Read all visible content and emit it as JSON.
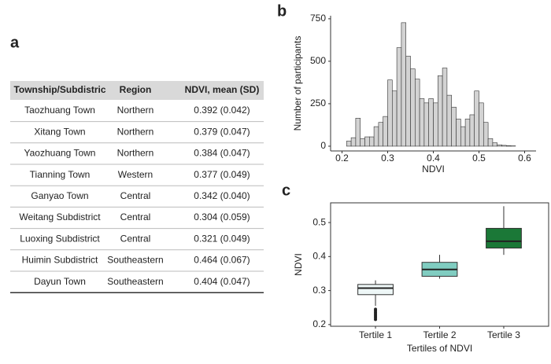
{
  "panel_labels": [
    "a",
    "b",
    "c"
  ],
  "table": {
    "header": [
      "Township/Subdistric",
      "Region",
      "NDVI, mean (SD)"
    ],
    "rows": [
      [
        "Taozhuang Town",
        "Northern",
        "0.392 (0.042)"
      ],
      [
        "Xitang Town",
        "Northern",
        "0.379 (0.047)"
      ],
      [
        "Yaozhuang Town",
        "Northern",
        "0.384 (0.047)"
      ],
      [
        "Tianning Town",
        "Western",
        "0.377 (0.049)"
      ],
      [
        "Ganyao Town",
        "Central",
        "0.342 (0.040)"
      ],
      [
        "Weitang Subdistrict",
        "Central",
        "0.304 (0.059)"
      ],
      [
        "Luoxing Subdistrict",
        "Central",
        "0.321 (0.049)"
      ],
      [
        "Huimin Subdistrict",
        "Southeastern",
        "0.464 (0.067)"
      ],
      [
        "Dayun Town",
        "Southeastern",
        "0.404 (0.047)"
      ]
    ]
  },
  "chart_data": [
    {
      "type": "histogram",
      "x_label": "NDVI",
      "y_label": "Number of participants",
      "color": "#d3d3d3",
      "bins": [
        0.21,
        0.22,
        0.23,
        0.24,
        0.25,
        0.26,
        0.27,
        0.28,
        0.29,
        0.3,
        0.31,
        0.32,
        0.33,
        0.34,
        0.35,
        0.36,
        0.37,
        0.38,
        0.39,
        0.4,
        0.41,
        0.42,
        0.43,
        0.44,
        0.45,
        0.46,
        0.47,
        0.48,
        0.49,
        0.5,
        0.51,
        0.52,
        0.53,
        0.54,
        0.55,
        0.56,
        0.57,
        0.58
      ],
      "values": [
        30,
        50,
        165,
        45,
        55,
        55,
        115,
        140,
        175,
        390,
        325,
        580,
        727,
        530,
        455,
        395,
        280,
        255,
        280,
        255,
        415,
        460,
        300,
        230,
        160,
        115,
        160,
        185,
        325,
        255,
        140,
        45,
        20,
        8,
        5,
        3,
        2
      ],
      "xlim": [
        0.175,
        0.625
      ],
      "xticks": [
        0.2,
        0.3,
        0.4,
        0.5,
        0.6
      ],
      "ylim": [
        -28,
        768
      ],
      "yticks": [
        0,
        250,
        500,
        750
      ]
    },
    {
      "type": "box",
      "x_label": "Tertiles of NDVI",
      "y_label": "NDVI",
      "categories": [
        "Tertile 1",
        "Tertile 2",
        "Tertile 3"
      ],
      "colors": [
        "#eef7f7",
        "#80cdc1",
        "#1b7837"
      ],
      "whisker_low": [
        0.255,
        0.335,
        0.405
      ],
      "q1": [
        0.288,
        0.342,
        0.425
      ],
      "median": [
        0.307,
        0.362,
        0.445
      ],
      "q3": [
        0.318,
        0.383,
        0.483
      ],
      "whisker_high": [
        0.33,
        0.405,
        0.548
      ],
      "outliers": [
        [
          0.215,
          0.22,
          0.225,
          0.23,
          0.235,
          0.24,
          0.245
        ],
        [],
        []
      ],
      "ylim": [
        0.195,
        0.558
      ],
      "yticks": [
        0.2,
        0.3,
        0.4,
        0.5
      ]
    }
  ]
}
